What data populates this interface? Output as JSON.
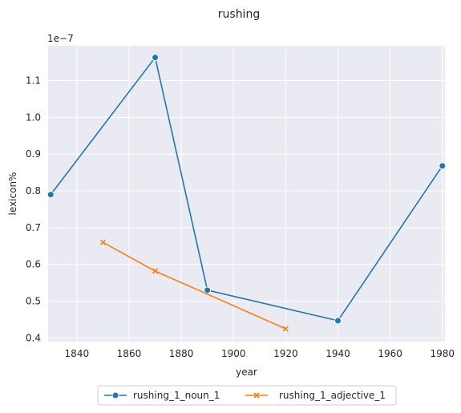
{
  "chart_data": {
    "type": "line",
    "title": "rushing",
    "xlabel": "year",
    "ylabel": "lexicon%",
    "y_offset_label": "1e−7",
    "xlim": [
      1829,
      1981
    ],
    "ylim": [
      0.39,
      1.195
    ],
    "x_ticks": [
      1840,
      1860,
      1880,
      1900,
      1920,
      1940,
      1960,
      1980
    ],
    "y_ticks": [
      0.4,
      0.5,
      0.6,
      0.7,
      0.8,
      0.9,
      1.0,
      1.1
    ],
    "grid": true,
    "legend_position": "bottom-center",
    "series": [
      {
        "name": "rushing_1_noun_1",
        "color": "#1f77b4",
        "marker": "circle",
        "x": [
          1830,
          1870,
          1890,
          1940,
          1980
        ],
        "y": [
          0.79,
          1.163,
          0.53,
          0.447,
          0.868
        ]
      },
      {
        "name": "rushing_1_adjective_1",
        "color": "#ff7f0e",
        "marker": "x",
        "x": [
          1850,
          1870,
          1920
        ],
        "y": [
          0.66,
          0.582,
          0.425
        ]
      }
    ]
  }
}
